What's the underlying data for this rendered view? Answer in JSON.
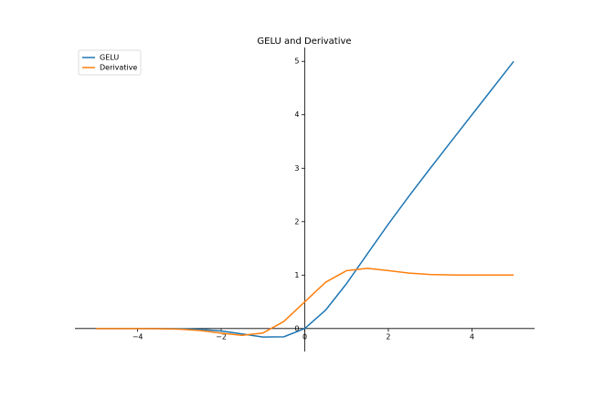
{
  "chart_data": {
    "type": "line",
    "title": "GELU and Derivative",
    "x": [
      -5,
      -4.5,
      -4,
      -3.5,
      -3,
      -2.5,
      -2,
      -1.5,
      -1,
      -0.5,
      0,
      0.5,
      1,
      1.5,
      2,
      2.5,
      3,
      3.5,
      4,
      4.5,
      5
    ],
    "series": [
      {
        "name": "GELU",
        "color": "#1f77b4",
        "values": [
          0,
          0,
          -0.0001,
          -0.0008,
          -0.004,
          -0.0155,
          -0.0455,
          -0.1002,
          -0.1587,
          -0.1543,
          0,
          0.3457,
          0.8413,
          1.3998,
          1.9545,
          2.4845,
          2.996,
          3.4992,
          3.9999,
          4.5,
          5
        ]
      },
      {
        "name": "Derivative",
        "color": "#ff7f0e",
        "values": [
          0,
          0,
          -0.0005,
          -0.0028,
          -0.012,
          -0.0376,
          -0.0852,
          -0.1275,
          -0.0833,
          0.1325,
          0.5,
          0.8675,
          1.0833,
          1.1275,
          1.0852,
          1.0376,
          1.012,
          1.0028,
          1.0005,
          1.0001,
          1
        ]
      }
    ],
    "xlim": [
      -5.5,
      5.5
    ],
    "ylim": [
      -0.43,
      5.26
    ],
    "xticks": [
      {
        "value": -4,
        "label": "−4"
      },
      {
        "value": -2,
        "label": "−2"
      },
      0,
      2,
      4
    ],
    "yticks": [
      0,
      1,
      2,
      3,
      4,
      5
    ],
    "legend": "upper left",
    "grid": false
  }
}
